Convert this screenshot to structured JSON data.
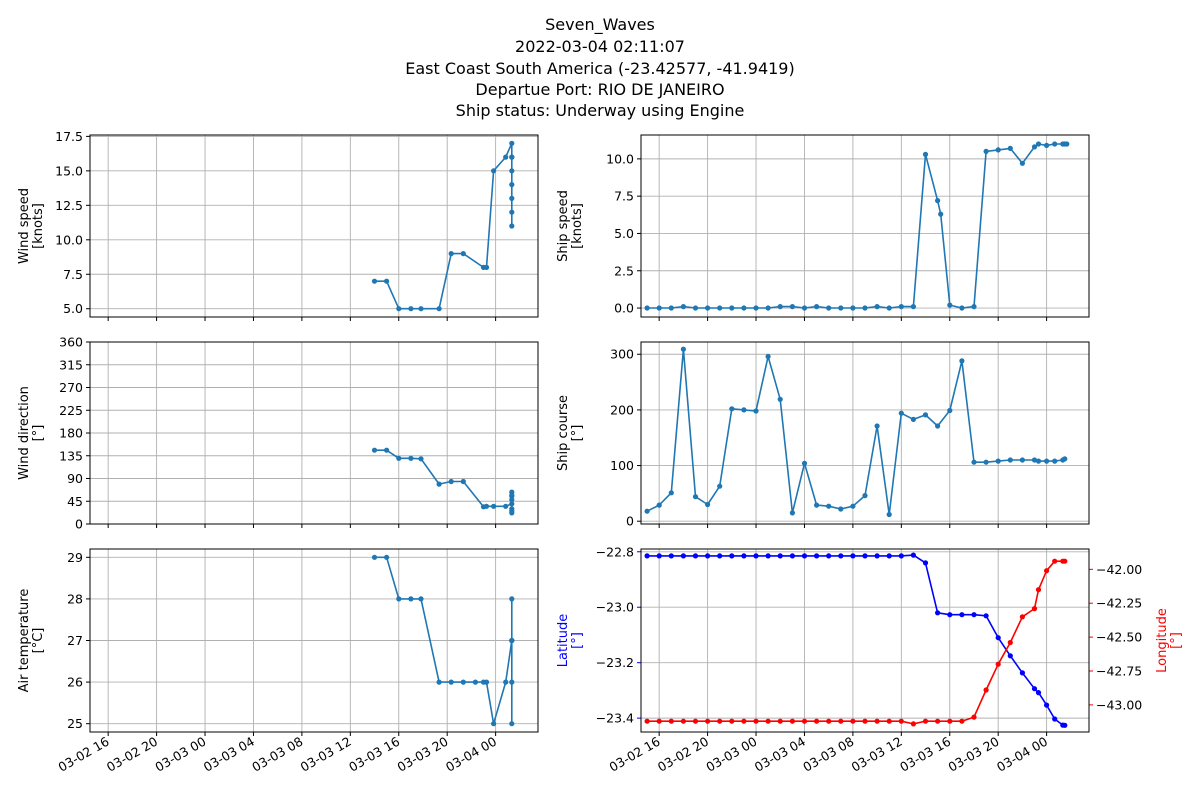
{
  "title": {
    "lines": [
      "Seven_Waves",
      "2022-03-04 02:11:07",
      "East Coast South America (-23.42577, -41.9419)",
      "Departue Port: RIO DE JANEIRO",
      "Ship status: Underway using Engine"
    ]
  },
  "colors": {
    "series": "#1f77b4",
    "latitude": "#0000ff",
    "longitude": "#ff0000",
    "grid": "#b0b0b0"
  },
  "chart_data": [
    {
      "type": "line",
      "panel": "wind-speed",
      "ylabel": [
        "Wind speed",
        "[knots]"
      ],
      "ylim": [
        4.4,
        17.6
      ],
      "yticks": [
        5.0,
        7.5,
        10.0,
        12.5,
        15.0,
        17.5
      ],
      "ytick_labels": [
        "5.0",
        "7.5",
        "10.0",
        "12.5",
        "15.0",
        "17.5"
      ],
      "xlim": [
        "2022-03-02 14:30",
        "2022-03-04 03:30"
      ],
      "xticks": [
        "2022-03-02 16:00",
        "2022-03-02 20:00",
        "2022-03-03 00:00",
        "2022-03-03 04:00",
        "2022-03-03 08:00",
        "2022-03-03 12:00",
        "2022-03-03 16:00",
        "2022-03-03 20:00",
        "2022-03-04 00:00"
      ],
      "xtick_labels": [],
      "x": [
        "2022-03-03 14:00",
        "2022-03-03 15:00",
        "2022-03-03 16:00",
        "2022-03-03 17:00",
        "2022-03-03 17:50",
        "2022-03-03 19:20",
        "2022-03-03 20:20",
        "2022-03-03 21:20",
        "2022-03-03 23:00",
        "2022-03-03 23:15",
        "2022-03-03 23:50",
        "2022-03-04 00:50",
        "2022-03-04 01:20",
        "2022-03-04 01:20",
        "2022-03-04 01:20",
        "2022-03-04 01:20",
        "2022-03-04 01:20",
        "2022-03-04 01:20",
        "2022-03-04 01:20",
        "2022-03-04 01:20"
      ],
      "y": [
        7,
        7,
        5,
        5,
        5,
        5,
        9,
        9,
        8,
        8,
        15,
        16,
        17,
        16,
        15,
        14,
        13,
        12,
        11,
        16
      ]
    },
    {
      "type": "line",
      "panel": "ship-speed",
      "ylabel": [
        "Ship speed",
        "[knots]"
      ],
      "ylim": [
        -0.6,
        11.6
      ],
      "yticks": [
        0.0,
        2.5,
        5.0,
        7.5,
        10.0
      ],
      "ytick_labels": [
        "0.0",
        "2.5",
        "5.0",
        "7.5",
        "10.0"
      ],
      "xlim": [
        "2022-03-02 14:30",
        "2022-03-04 03:30"
      ],
      "xticks": [
        "2022-03-02 16:00",
        "2022-03-02 20:00",
        "2022-03-03 00:00",
        "2022-03-03 04:00",
        "2022-03-03 08:00",
        "2022-03-03 12:00",
        "2022-03-03 16:00",
        "2022-03-03 20:00",
        "2022-03-04 00:00"
      ],
      "xtick_labels": [],
      "x": [
        "2022-03-02 15:00",
        "2022-03-02 16:00",
        "2022-03-02 17:00",
        "2022-03-02 18:00",
        "2022-03-02 19:00",
        "2022-03-02 20:00",
        "2022-03-02 21:00",
        "2022-03-02 22:00",
        "2022-03-02 23:00",
        "2022-03-03 00:00",
        "2022-03-03 01:00",
        "2022-03-03 02:00",
        "2022-03-03 03:00",
        "2022-03-03 04:00",
        "2022-03-03 05:00",
        "2022-03-03 06:00",
        "2022-03-03 07:00",
        "2022-03-03 08:00",
        "2022-03-03 09:00",
        "2022-03-03 10:00",
        "2022-03-03 11:00",
        "2022-03-03 12:00",
        "2022-03-03 13:00",
        "2022-03-03 14:00",
        "2022-03-03 15:00",
        "2022-03-03 15:15",
        "2022-03-03 16:00",
        "2022-03-03 17:00",
        "2022-03-03 18:00",
        "2022-03-03 19:00",
        "2022-03-03 20:00",
        "2022-03-03 21:00",
        "2022-03-03 22:00",
        "2022-03-03 23:00",
        "2022-03-03 23:20",
        "2022-03-04 00:00",
        "2022-03-04 00:40",
        "2022-03-04 01:20",
        "2022-03-04 01:30",
        "2022-03-04 01:40"
      ],
      "y": [
        0,
        0,
        0,
        0.1,
        0,
        0,
        0,
        0,
        0,
        0,
        0,
        0.1,
        0.1,
        0,
        0.1,
        0,
        0,
        0,
        0,
        0.1,
        0,
        0.1,
        0.1,
        10.3,
        7.2,
        6.3,
        0.2,
        0,
        0.1,
        10.5,
        10.6,
        10.7,
        9.7,
        10.8,
        11.0,
        10.9,
        11.0,
        11.0,
        11.0,
        11.0
      ]
    },
    {
      "type": "line",
      "panel": "wind-direction",
      "ylabel": [
        "Wind direction",
        "[°]"
      ],
      "ylim": [
        0,
        360
      ],
      "yticks": [
        0,
        45,
        90,
        135,
        180,
        225,
        270,
        315,
        360
      ],
      "ytick_labels": [
        "0",
        "45",
        "90",
        "135",
        "180",
        "225",
        "270",
        "315",
        "360"
      ],
      "xlim": [
        "2022-03-02 14:30",
        "2022-03-04 03:30"
      ],
      "xticks": [
        "2022-03-02 16:00",
        "2022-03-02 20:00",
        "2022-03-03 00:00",
        "2022-03-03 04:00",
        "2022-03-03 08:00",
        "2022-03-03 12:00",
        "2022-03-03 16:00",
        "2022-03-03 20:00",
        "2022-03-04 00:00"
      ],
      "xtick_labels": [],
      "x": [
        "2022-03-03 14:00",
        "2022-03-03 15:00",
        "2022-03-03 16:00",
        "2022-03-03 17:00",
        "2022-03-03 17:50",
        "2022-03-03 19:20",
        "2022-03-03 20:20",
        "2022-03-03 21:20",
        "2022-03-03 23:00",
        "2022-03-03 23:15",
        "2022-03-03 23:50",
        "2022-03-04 00:50",
        "2022-03-04 01:20",
        "2022-03-04 01:20",
        "2022-03-04 01:20",
        "2022-03-04 01:20",
        "2022-03-04 01:20",
        "2022-03-04 01:20",
        "2022-03-04 01:20",
        "2022-03-04 01:20"
      ],
      "y": [
        146,
        146,
        130,
        130,
        129,
        79,
        84,
        84,
        34,
        35,
        35,
        35,
        40,
        63,
        55,
        48,
        30,
        26,
        22,
        57
      ]
    },
    {
      "type": "line",
      "panel": "ship-course",
      "ylabel": [
        "Ship course",
        "[°]"
      ],
      "ylim": [
        -5,
        322
      ],
      "yticks": [
        0,
        100,
        200,
        300
      ],
      "ytick_labels": [
        "0",
        "100",
        "200",
        "300"
      ],
      "xlim": [
        "2022-03-02 14:30",
        "2022-03-04 03:30"
      ],
      "xticks": [
        "2022-03-02 16:00",
        "2022-03-02 20:00",
        "2022-03-03 00:00",
        "2022-03-03 04:00",
        "2022-03-03 08:00",
        "2022-03-03 12:00",
        "2022-03-03 16:00",
        "2022-03-03 20:00",
        "2022-03-04 00:00"
      ],
      "xtick_labels": [],
      "x": [
        "2022-03-02 15:00",
        "2022-03-02 16:00",
        "2022-03-02 17:00",
        "2022-03-02 18:00",
        "2022-03-02 19:00",
        "2022-03-02 20:00",
        "2022-03-02 21:00",
        "2022-03-02 22:00",
        "2022-03-02 23:00",
        "2022-03-03 00:00",
        "2022-03-03 01:00",
        "2022-03-03 02:00",
        "2022-03-03 03:00",
        "2022-03-03 04:00",
        "2022-03-03 05:00",
        "2022-03-03 06:00",
        "2022-03-03 07:00",
        "2022-03-03 08:00",
        "2022-03-03 09:00",
        "2022-03-03 10:00",
        "2022-03-03 11:00",
        "2022-03-03 12:00",
        "2022-03-03 13:00",
        "2022-03-03 14:00",
        "2022-03-03 15:00",
        "2022-03-03 16:00",
        "2022-03-03 17:00",
        "2022-03-03 18:00",
        "2022-03-03 19:00",
        "2022-03-03 20:00",
        "2022-03-03 21:00",
        "2022-03-03 22:00",
        "2022-03-03 23:00",
        "2022-03-03 23:20",
        "2022-03-04 00:00",
        "2022-03-04 00:40",
        "2022-03-04 01:20",
        "2022-03-04 01:30"
      ],
      "y": [
        18,
        29,
        51,
        309,
        44,
        30,
        63,
        202,
        200,
        198,
        296,
        219,
        15,
        104,
        29,
        27,
        22,
        27,
        46,
        171,
        12,
        194,
        183,
        191,
        171,
        199,
        288,
        106,
        106,
        108,
        110,
        110,
        110,
        108,
        108,
        108,
        110,
        112
      ]
    },
    {
      "type": "line",
      "panel": "air-temperature",
      "ylabel": [
        "Air temperature",
        "[°C]"
      ],
      "ylim": [
        24.8,
        29.2
      ],
      "yticks": [
        25,
        26,
        27,
        28,
        29
      ],
      "ytick_labels": [
        "25",
        "26",
        "27",
        "28",
        "29"
      ],
      "xlim": [
        "2022-03-02 14:30",
        "2022-03-04 03:30"
      ],
      "xticks": [
        "2022-03-02 16:00",
        "2022-03-02 20:00",
        "2022-03-03 00:00",
        "2022-03-03 04:00",
        "2022-03-03 08:00",
        "2022-03-03 12:00",
        "2022-03-03 16:00",
        "2022-03-03 20:00",
        "2022-03-04 00:00"
      ],
      "xtick_labels": [
        "03-02 16",
        "03-02 20",
        "03-03 00",
        "03-03 04",
        "03-03 08",
        "03-03 12",
        "03-03 16",
        "03-03 20",
        "03-04 00"
      ],
      "x": [
        "2022-03-03 14:00",
        "2022-03-03 15:00",
        "2022-03-03 16:00",
        "2022-03-03 17:00",
        "2022-03-03 17:50",
        "2022-03-03 19:20",
        "2022-03-03 20:20",
        "2022-03-03 21:20",
        "2022-03-03 22:20",
        "2022-03-03 23:00",
        "2022-03-03 23:15",
        "2022-03-03 23:50",
        "2022-03-04 00:50",
        "2022-03-04 01:20",
        "2022-03-04 01:20",
        "2022-03-04 01:20",
        "2022-03-04 01:20",
        "2022-03-04 01:20",
        "2022-03-04 01:20"
      ],
      "y": [
        29,
        29,
        28,
        28,
        28,
        26,
        26,
        26,
        26,
        26,
        26,
        25,
        26,
        27,
        28,
        27,
        26,
        25,
        27
      ]
    },
    {
      "type": "line",
      "panel": "position",
      "xlim": [
        "2022-03-02 14:30",
        "2022-03-04 03:30"
      ],
      "xticks": [
        "2022-03-02 16:00",
        "2022-03-02 20:00",
        "2022-03-03 00:00",
        "2022-03-03 04:00",
        "2022-03-03 08:00",
        "2022-03-03 12:00",
        "2022-03-03 16:00",
        "2022-03-03 20:00",
        "2022-03-04 00:00"
      ],
      "xtick_labels": [
        "03-02 16",
        "03-02 20",
        "03-03 00",
        "03-03 04",
        "03-03 08",
        "03-03 12",
        "03-03 16",
        "03-03 20",
        "03-04 00"
      ],
      "x": [
        "2022-03-02 15:00",
        "2022-03-02 16:00",
        "2022-03-02 17:00",
        "2022-03-02 18:00",
        "2022-03-02 19:00",
        "2022-03-02 20:00",
        "2022-03-02 21:00",
        "2022-03-02 22:00",
        "2022-03-02 23:00",
        "2022-03-03 00:00",
        "2022-03-03 01:00",
        "2022-03-03 02:00",
        "2022-03-03 03:00",
        "2022-03-03 04:00",
        "2022-03-03 05:00",
        "2022-03-03 06:00",
        "2022-03-03 07:00",
        "2022-03-03 08:00",
        "2022-03-03 09:00",
        "2022-03-03 10:00",
        "2022-03-03 11:00",
        "2022-03-03 12:00",
        "2022-03-03 13:00",
        "2022-03-03 14:00",
        "2022-03-03 15:00",
        "2022-03-03 16:00",
        "2022-03-03 17:00",
        "2022-03-03 18:00",
        "2022-03-03 19:00",
        "2022-03-03 20:00",
        "2022-03-03 21:00",
        "2022-03-03 22:00",
        "2022-03-03 23:00",
        "2022-03-03 23:20",
        "2022-03-04 00:00",
        "2022-03-04 00:40",
        "2022-03-04 01:20",
        "2022-03-04 01:30"
      ],
      "series": [
        {
          "name": "Latitude",
          "axis": "left",
          "ylabel": [
            "Latitude",
            "[°]"
          ],
          "ylim": [
            -23.45,
            -22.79
          ],
          "yticks": [
            -22.8,
            -23.0,
            -23.2,
            -23.4
          ],
          "ytick_labels": [
            "−22.8",
            "−23.0",
            "−23.2",
            "−23.4"
          ],
          "values": [
            -22.815,
            -22.815,
            -22.815,
            -22.815,
            -22.815,
            -22.815,
            -22.815,
            -22.815,
            -22.815,
            -22.815,
            -22.815,
            -22.815,
            -22.815,
            -22.815,
            -22.815,
            -22.815,
            -22.815,
            -22.815,
            -22.815,
            -22.815,
            -22.815,
            -22.815,
            -22.812,
            -22.84,
            -23.02,
            -23.027,
            -23.027,
            -23.027,
            -23.031,
            -23.11,
            -23.175,
            -23.237,
            -23.294,
            -23.308,
            -23.353,
            -23.403,
            -23.425,
            -23.426
          ]
        },
        {
          "name": "Longitude",
          "axis": "right",
          "ylabel": [
            "Longitude",
            "[°]"
          ],
          "ylim": [
            -43.2,
            -41.85
          ],
          "yticks": [
            -42.0,
            -42.25,
            -42.5,
            -42.75,
            -43.0
          ],
          "ytick_labels": [
            "−42.00",
            "−42.25",
            "−42.50",
            "−42.75",
            "−43.00"
          ],
          "values": [
            -43.12,
            -43.12,
            -43.12,
            -43.12,
            -43.12,
            -43.12,
            -43.12,
            -43.12,
            -43.12,
            -43.12,
            -43.12,
            -43.12,
            -43.12,
            -43.12,
            -43.12,
            -43.12,
            -43.12,
            -43.12,
            -43.12,
            -43.12,
            -43.12,
            -43.12,
            -43.14,
            -43.12,
            -43.12,
            -43.12,
            -43.12,
            -43.09,
            -42.89,
            -42.7,
            -42.54,
            -42.35,
            -42.29,
            -42.15,
            -42.01,
            -41.94,
            -41.94,
            -41.94
          ]
        }
      ]
    }
  ]
}
